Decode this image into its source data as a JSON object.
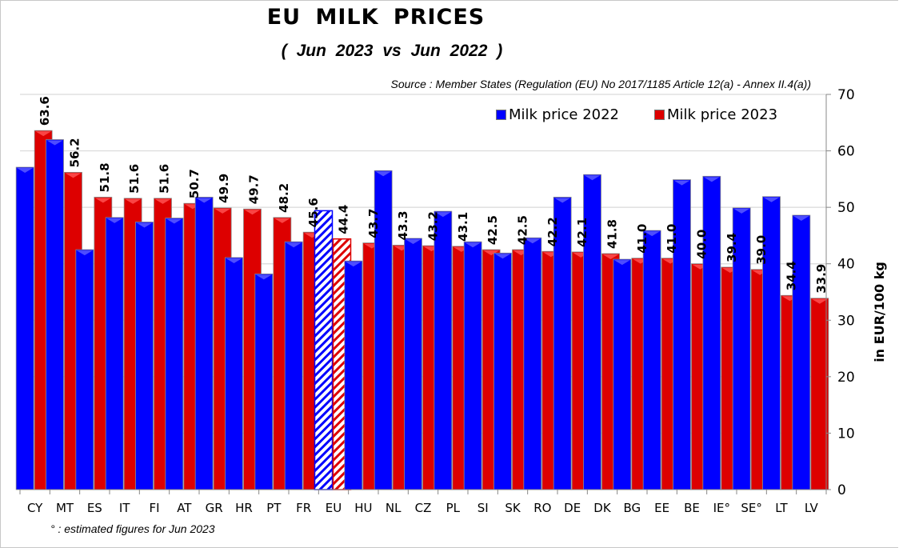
{
  "chart_data": {
    "type": "bar",
    "title": "EU  MILK  PRICES",
    "subtitle": "( Jun 2023   vs   Jun 2022 )",
    "source": "Source : Member States (Regulation (EU) No 2017/1185 Article 12(a) - Annex II.4(a))",
    "footnote": "° : estimated figures for Jun 2023",
    "xlabel": "",
    "ylabel": "in EUR/100 kg",
    "ylim": [
      0,
      70
    ],
    "yticks": [
      0,
      10,
      20,
      30,
      40,
      50,
      60,
      70
    ],
    "y_axis_side": "right",
    "grid": true,
    "legend_position": "top-right",
    "categories": [
      "CY",
      "MT",
      "ES",
      "IT",
      "FI",
      "AT",
      "GR",
      "HR",
      "PT",
      "FR",
      "EU",
      "HU",
      "NL",
      "CZ",
      "PL",
      "SI",
      "SK",
      "RO",
      "DE",
      "DK",
      "BG",
      "EE",
      "BE",
      "IE°",
      "SE°",
      "LT",
      "LV"
    ],
    "highlight_category": "EU",
    "series": [
      {
        "name": "Milk price 2022",
        "color": "#0000ff",
        "values": [
          57.1,
          62.0,
          42.5,
          48.2,
          47.4,
          48.1,
          51.8,
          41.1,
          38.2,
          43.9,
          49.4,
          40.5,
          56.5,
          44.5,
          49.3,
          43.9,
          41.9,
          44.6,
          51.8,
          55.8,
          40.8,
          45.9,
          54.9,
          55.5,
          49.9,
          51.9,
          48.6
        ]
      },
      {
        "name": "Milk price 2023",
        "color": "#dd0000",
        "values": [
          63.6,
          56.2,
          51.8,
          51.6,
          51.6,
          50.7,
          49.9,
          49.7,
          48.2,
          45.6,
          44.4,
          43.7,
          43.3,
          43.2,
          43.1,
          42.5,
          42.5,
          42.2,
          42.1,
          41.8,
          41.0,
          41.0,
          40.0,
          39.4,
          39.0,
          34.4,
          33.9
        ],
        "data_labels": [
          "63.6",
          "56.2",
          "51.8",
          "51.6",
          "51.6",
          "50.7",
          "49.9",
          "49.7",
          "48.2",
          "45.6",
          "44.4",
          "43.7",
          "43.3",
          "43.2",
          "43.1",
          "42.5",
          "42.5",
          "42.2",
          "42.1",
          "41.8",
          "41.0",
          "41.0",
          "40.0",
          "39.4",
          "39.0",
          "34.4",
          "33.9"
        ]
      }
    ]
  }
}
